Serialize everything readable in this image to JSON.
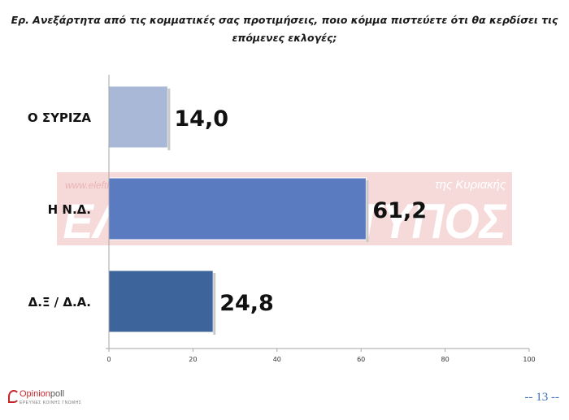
{
  "question": {
    "line1": "Ερ. Ανεξάρτητα από τις κομματικές σας προτιμήσεις, ποιο κόμμα πιστεύετε ότι θα κερδίσει τις",
    "line2": "επόμενες εκλογές;"
  },
  "watermark": {
    "url": "www.eleftherostypos.gr",
    "tag": "της Κυριακής",
    "name": "ΕΛΕΥΘΕΡΟΣ ΤΥΠΟΣ",
    "color": "#f3c9c9"
  },
  "chart_data": {
    "type": "bar",
    "orientation": "horizontal",
    "categories": [
      "Ο ΣΥΡΙΖΑ",
      "Η Ν.Δ.",
      "Δ.Ξ / Δ.Α."
    ],
    "values": [
      14.0,
      61.2,
      24.8
    ],
    "value_labels": [
      "14,0",
      "61,2",
      "24,8"
    ],
    "xlim": [
      0,
      100
    ],
    "xticks": [
      0,
      20,
      40,
      60,
      80,
      100
    ],
    "colors": [
      "#aab8d8",
      "#5b7bc1",
      "#3e649c"
    ],
    "grid": false,
    "legend": "none"
  },
  "footer": {
    "logo_name": "Opinion",
    "logo_name2": "poll",
    "logo_tagline": "ΕΡΕΥΝΕΣ ΚΟΙΝΗΣ ΓΝΩΜΗΣ",
    "page_number": "-- 13 --"
  }
}
